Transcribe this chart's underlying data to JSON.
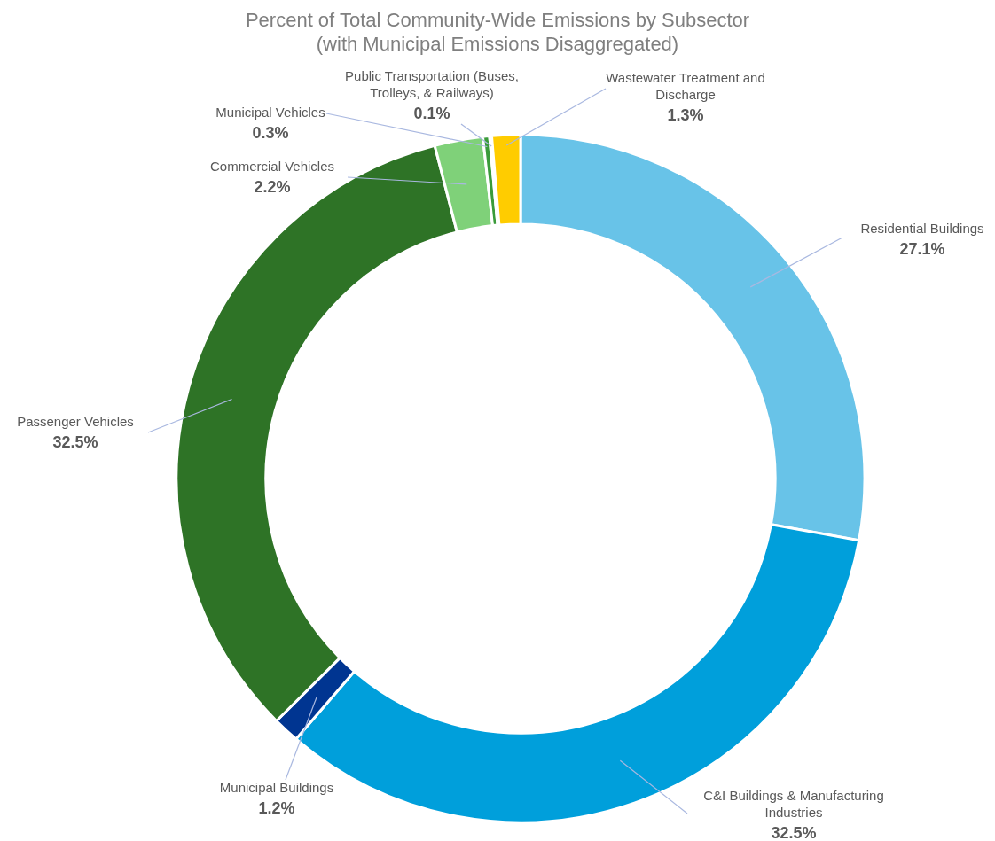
{
  "chart_data": {
    "type": "donut",
    "title": "Percent of Total Community-Wide Emissions by Subsector (with Municipal Emissions Disaggregated)",
    "categories": [
      "Residential Buildings",
      "C&I Buildings & Manufacturing Industries",
      "Municipal Buildings",
      "Passenger Vehicles",
      "Commercial Vehicles",
      "Municipal Vehicles",
      "Public Transportation (Buses, Trolleys, & Railways)",
      "Wastewater Treatment and Discharge"
    ],
    "values": [
      27.1,
      32.5,
      1.2,
      32.5,
      2.2,
      0.3,
      0.1,
      1.3
    ],
    "value_labels": [
      "27.1%",
      "32.5%",
      "1.2%",
      "32.5%",
      "2.2%",
      "0.3%",
      "0.1%",
      "1.3%"
    ],
    "colors": [
      "#68c3e8",
      "#009fdb",
      "#003591",
      "#2e7326",
      "#7fd179",
      "#3a9b3a",
      "#1e3d1e",
      "#ffcc00"
    ]
  }
}
